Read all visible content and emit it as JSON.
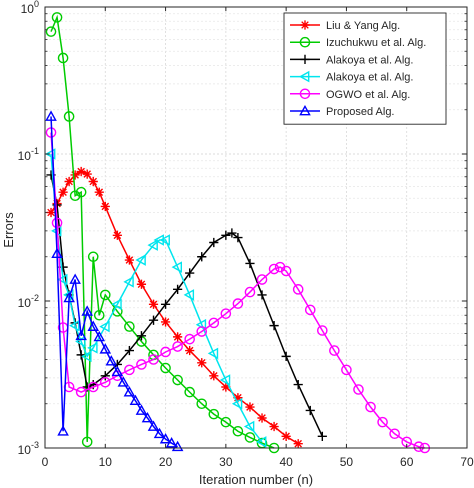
{
  "chart_data": {
    "type": "line",
    "title": "",
    "xlabel": "Iteration number (n)",
    "ylabel": "Errors",
    "xlim": [
      0,
      70
    ],
    "ylim": [
      0.001,
      1
    ],
    "yscale": "log",
    "grid": true,
    "legend_position": "top-right",
    "x_ticks": [
      0,
      10,
      20,
      30,
      40,
      50,
      60,
      70
    ],
    "x_tick_labels": [
      "0",
      "10",
      "20",
      "30",
      "40",
      "50",
      "60",
      "70"
    ],
    "y_ticks": [
      0.001,
      0.01,
      0.1,
      1
    ],
    "y_tick_labels": [
      "10",
      "10",
      "10",
      "10"
    ],
    "y_tick_exponents": [
      "-3",
      "-2",
      "-1",
      "0"
    ],
    "series": [
      {
        "name": "Liu & Yang Alg.",
        "color": "#ff0000",
        "marker": "asterisk",
        "points": [
          [
            1,
            0.04
          ],
          [
            2,
            0.046
          ],
          [
            3,
            0.055
          ],
          [
            4,
            0.065
          ],
          [
            5,
            0.072
          ],
          [
            6,
            0.076
          ],
          [
            7,
            0.073
          ],
          [
            8,
            0.065
          ],
          [
            9,
            0.055
          ],
          [
            10,
            0.044
          ],
          [
            12,
            0.028
          ],
          [
            14,
            0.019
          ],
          [
            16,
            0.013
          ],
          [
            18,
            0.0095
          ],
          [
            20,
            0.0072
          ],
          [
            22,
            0.0057
          ],
          [
            24,
            0.0046
          ],
          [
            26,
            0.0038
          ],
          [
            28,
            0.0031
          ],
          [
            30,
            0.0026
          ],
          [
            32,
            0.0022
          ],
          [
            34,
            0.0019
          ],
          [
            36,
            0.0016
          ],
          [
            38,
            0.0014
          ],
          [
            40,
            0.0012
          ],
          [
            42,
            0.00107
          ],
          [
            44,
            0.00098
          ]
        ]
      },
      {
        "name": "Izuchukwu et al. Alg.",
        "color": "#00cc00",
        "marker": "circle",
        "points": [
          [
            1,
            0.68
          ],
          [
            2,
            0.85
          ],
          [
            3,
            0.45
          ],
          [
            4,
            0.18
          ],
          [
            5,
            0.052
          ],
          [
            6,
            0.055
          ],
          [
            7,
            0.0011
          ],
          [
            8,
            0.02
          ],
          [
            9,
            0.008
          ],
          [
            10,
            0.011
          ],
          [
            12,
            0.0085
          ],
          [
            14,
            0.0067
          ],
          [
            16,
            0.0053
          ],
          [
            18,
            0.0043
          ],
          [
            20,
            0.0035
          ],
          [
            22,
            0.0029
          ],
          [
            24,
            0.0024
          ],
          [
            26,
            0.002
          ],
          [
            28,
            0.0017
          ],
          [
            30,
            0.0015
          ],
          [
            32,
            0.0013
          ],
          [
            34,
            0.00118
          ],
          [
            36,
            0.00108
          ],
          [
            38,
            0.001
          ]
        ]
      },
      {
        "name": "Alakoya et al. Alg.",
        "color": "#000000",
        "marker": "plus",
        "points": [
          [
            1,
            0.072
          ],
          [
            2,
            0.045
          ],
          [
            3,
            0.017
          ],
          [
            4,
            0.011
          ],
          [
            5,
            0.0071
          ],
          [
            6,
            0.0043
          ],
          [
            7,
            0.0026
          ],
          [
            8,
            0.0027
          ],
          [
            10,
            0.0031
          ],
          [
            12,
            0.0037
          ],
          [
            14,
            0.0046
          ],
          [
            16,
            0.0058
          ],
          [
            18,
            0.0074
          ],
          [
            20,
            0.0095
          ],
          [
            22,
            0.012
          ],
          [
            24,
            0.0155
          ],
          [
            26,
            0.02
          ],
          [
            28,
            0.025
          ],
          [
            30,
            0.028
          ],
          [
            31,
            0.029
          ],
          [
            32,
            0.027
          ],
          [
            34,
            0.018
          ],
          [
            36,
            0.011
          ],
          [
            38,
            0.0068
          ],
          [
            40,
            0.0042
          ],
          [
            42,
            0.0027
          ],
          [
            44,
            0.0018
          ],
          [
            46,
            0.0012
          ],
          [
            47,
            0.00098
          ]
        ]
      },
      {
        "name": "Alakoya et al. Alg.",
        "color": "#00e5ee",
        "marker": "triangle-left",
        "points": [
          [
            1,
            0.1
          ],
          [
            2,
            0.03
          ],
          [
            3,
            0.014
          ],
          [
            4,
            0.011
          ],
          [
            5,
            0.0068
          ],
          [
            6,
            0.0053
          ],
          [
            7,
            0.0042
          ],
          [
            8,
            0.0048
          ],
          [
            10,
            0.0067
          ],
          [
            12,
            0.0095
          ],
          [
            14,
            0.0135
          ],
          [
            16,
            0.019
          ],
          [
            18,
            0.024
          ],
          [
            19,
            0.026
          ],
          [
            20,
            0.026
          ],
          [
            22,
            0.017
          ],
          [
            24,
            0.011
          ],
          [
            26,
            0.0069
          ],
          [
            28,
            0.0044
          ],
          [
            30,
            0.0029
          ],
          [
            32,
            0.002
          ],
          [
            34,
            0.0014
          ],
          [
            36,
            0.0011
          ],
          [
            37,
            0.00098
          ]
        ]
      },
      {
        "name": "OGWO et al. Alg.",
        "color": "#ff00ff",
        "marker": "circle",
        "points": [
          [
            1,
            0.14
          ],
          [
            2,
            0.034
          ],
          [
            3,
            0.0066
          ],
          [
            4,
            0.0026
          ],
          [
            6,
            0.0024
          ],
          [
            8,
            0.0026
          ],
          [
            10,
            0.0028
          ],
          [
            12,
            0.0031
          ],
          [
            14,
            0.0034
          ],
          [
            16,
            0.0037
          ],
          [
            18,
            0.004
          ],
          [
            20,
            0.0045
          ],
          [
            22,
            0.0049
          ],
          [
            24,
            0.0055
          ],
          [
            26,
            0.0062
          ],
          [
            28,
            0.0071
          ],
          [
            30,
            0.0082
          ],
          [
            32,
            0.0096
          ],
          [
            34,
            0.0115
          ],
          [
            36,
            0.014
          ],
          [
            38,
            0.0165
          ],
          [
            39,
            0.017
          ],
          [
            40,
            0.016
          ],
          [
            42,
            0.012
          ],
          [
            44,
            0.0087
          ],
          [
            46,
            0.0063
          ],
          [
            48,
            0.0046
          ],
          [
            50,
            0.0034
          ],
          [
            52,
            0.0025
          ],
          [
            54,
            0.0019
          ],
          [
            56,
            0.0015
          ],
          [
            58,
            0.00125
          ],
          [
            60,
            0.0011
          ],
          [
            62,
            0.00102
          ],
          [
            63,
            0.001
          ]
        ]
      },
      {
        "name": "Proposed Alg.",
        "color": "#0000ff",
        "marker": "triangle-up",
        "points": [
          [
            1,
            0.18
          ],
          [
            2,
            0.021
          ],
          [
            3,
            0.0013
          ],
          [
            4,
            0.0105
          ],
          [
            5,
            0.014
          ],
          [
            6,
            0.0058
          ],
          [
            7,
            0.0085
          ],
          [
            8,
            0.0067
          ],
          [
            9,
            0.0057
          ],
          [
            10,
            0.0047
          ],
          [
            11,
            0.0039
          ],
          [
            12,
            0.0033
          ],
          [
            13,
            0.0028
          ],
          [
            14,
            0.0024
          ],
          [
            15,
            0.0021
          ],
          [
            16,
            0.0018
          ],
          [
            17,
            0.0016
          ],
          [
            18,
            0.0014
          ],
          [
            19,
            0.00125
          ],
          [
            20,
            0.00115
          ],
          [
            21,
            0.00108
          ],
          [
            22,
            0.00102
          ],
          [
            23,
            0.00098
          ]
        ]
      }
    ]
  }
}
